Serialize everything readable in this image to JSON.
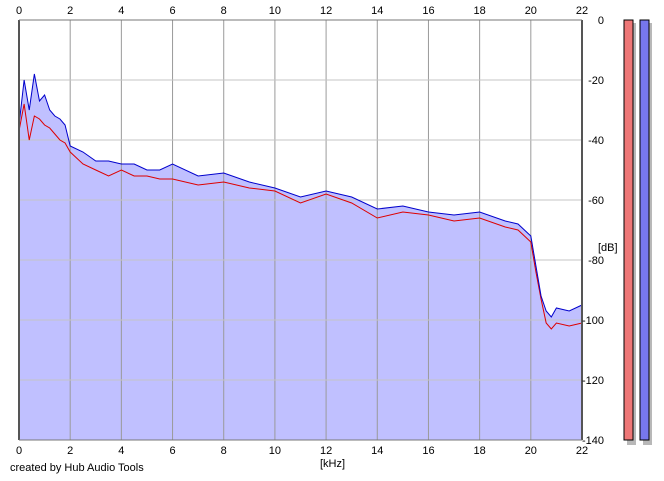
{
  "chart_data": {
    "type": "area",
    "xlabel": "[kHz]",
    "ylabel": "[dB]",
    "xlim": [
      0,
      22
    ],
    "ylim": [
      -140,
      0
    ],
    "x_ticks": [
      0,
      2,
      4,
      6,
      8,
      10,
      12,
      14,
      16,
      18,
      20,
      22
    ],
    "y_ticks": [
      0,
      -20,
      -40,
      -60,
      -80,
      -100,
      -120,
      -140
    ],
    "grid": true,
    "credit": "created by Hub Audio Tools",
    "series": [
      {
        "color": "#0000cc",
        "x": [
          0,
          0.2,
          0.4,
          0.6,
          0.8,
          1,
          1.2,
          1.4,
          1.6,
          1.8,
          2,
          2.5,
          3,
          3.5,
          4,
          4.5,
          5,
          5.5,
          6,
          7,
          8,
          9,
          10,
          11,
          12,
          13,
          14,
          15,
          16,
          17,
          18,
          19,
          19.5,
          20,
          20.2,
          20.4,
          20.6,
          20.8,
          21,
          21.5,
          22
        ],
        "values": [
          -35,
          -20,
          -30,
          -18,
          -27,
          -25,
          -30,
          -32,
          -33,
          -35,
          -42,
          -44,
          -47,
          -47,
          -48,
          -48,
          -50,
          -50,
          -48,
          -52,
          -51,
          -54,
          -56,
          -59,
          -57,
          -59,
          -63,
          -62,
          -64,
          -65,
          -64,
          -67,
          -68,
          -72,
          -82,
          -92,
          -97,
          -99,
          -96,
          -97,
          -95
        ]
      },
      {
        "color": "#dd0000",
        "x": [
          0,
          0.2,
          0.4,
          0.6,
          0.8,
          1,
          1.2,
          1.4,
          1.6,
          1.8,
          2,
          2.5,
          3,
          3.5,
          4,
          4.5,
          5,
          5.5,
          6,
          7,
          8,
          9,
          10,
          11,
          12,
          13,
          14,
          15,
          16,
          17,
          18,
          19,
          19.5,
          20,
          20.2,
          20.4,
          20.6,
          20.8,
          21,
          21.5,
          22
        ],
        "values": [
          -37,
          -28,
          -40,
          -32,
          -33,
          -35,
          -36,
          -38,
          -40,
          -41,
          -44,
          -48,
          -50,
          -52,
          -50,
          -52,
          -52,
          -53,
          -53,
          -55,
          -54,
          -56,
          -57,
          -61,
          -58,
          -61,
          -66,
          -64,
          -65,
          -67,
          -66,
          -69,
          -70,
          -74,
          -84,
          -93,
          -101,
          -103,
          -101,
          -102,
          -101
        ]
      }
    ],
    "fill_color": "#c0c0ff",
    "channel_meters": [
      {
        "color": "#ee7777"
      },
      {
        "color": "#7777ee"
      }
    ]
  }
}
